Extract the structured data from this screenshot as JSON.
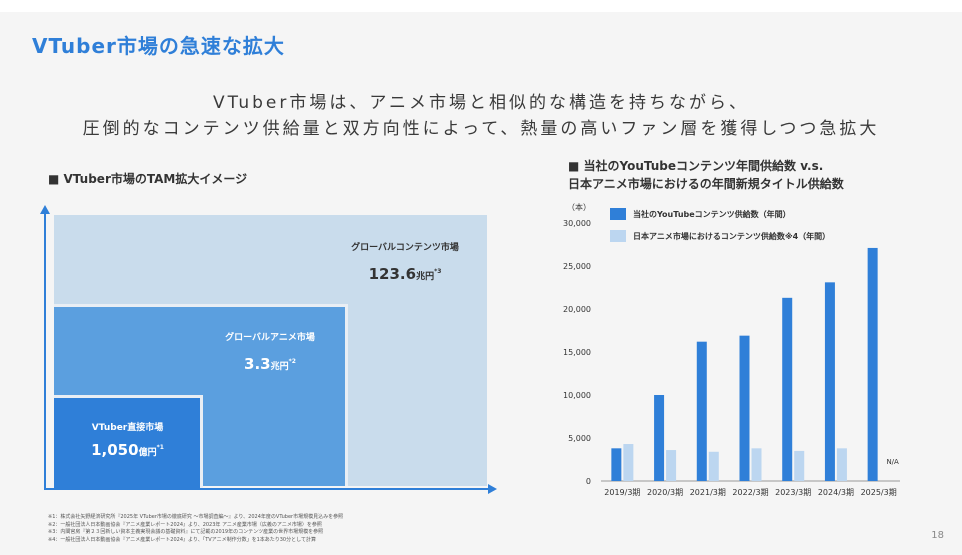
{
  "title": "VTuber市場の急速な拡大",
  "subtitle": {
    "line1": "VTuber市場は、アニメ市場と相似的な構造を持ちながら、",
    "line2": "圧倒的なコンテンツ供給量と双方向性によって、熱量の高いファン層を獲得しつつ急拡大"
  },
  "left_section": {
    "heading": "■ VTuber市場のTAM拡大イメージ",
    "boxes": [
      {
        "name": "グローバルコンテンツ市場",
        "value": "123.6",
        "unit": "兆円",
        "note": "*3"
      },
      {
        "name": "グローバルアニメ市場",
        "value": "3.3",
        "unit": "兆円",
        "note": "*2"
      },
      {
        "name": "VTuber直接市場",
        "value": "1,050",
        "unit": "億円",
        "note": "*1"
      }
    ]
  },
  "right_section": {
    "heading_line1": "■ 当社のYouTubeコンテンツ年間供給数 v.s.",
    "heading_line2": "日本アニメ市場におけるの年間新規タイトル供給数"
  },
  "footnotes": [
    "※1：株式会社矢野経済研究所『2025年 VTuber市場の徹底研究 ～市場調査編～』より、2024年度のVTuber市場規模見込みを参照",
    "※2：一般社団法人日本動画協会『アニメ産業レポート2024』より、2023年 アニメ産業市場（広義のアニメ市場）を参照",
    "※3：内閣官房『第２３回新しい資本主義実現会議の基礎資料』にて記載の2019年のコンテンツ産業の世界市場規模を参照",
    "※4：一般社団法人日本動画協会『アニメ産業レポート2024』より、「TVアニメ制作分数」を1本あたり30分として計算"
  ],
  "page_number": "18",
  "colors": {
    "accent": "#2f7fd8",
    "light": "#bcd6f0",
    "mid": "#5b9fdf",
    "pale": "#c9dcec"
  },
  "chart_data": {
    "type": "bar",
    "ylabel": "（本）",
    "ylim": [
      0,
      30000
    ],
    "yticks": [
      "0",
      "5,000",
      "10,000",
      "15,000",
      "20,000",
      "25,000",
      "30,000"
    ],
    "categories": [
      "2019/3期",
      "2020/3期",
      "2021/3期",
      "2022/3期",
      "2023/3期",
      "2024/3期",
      "2025/3期"
    ],
    "series": [
      {
        "name": "当社のYouTubeコンテンツ供給数（年間）",
        "color": "#2f7fd8",
        "values": [
          3800,
          10000,
          16200,
          16900,
          21300,
          23100,
          27100
        ]
      },
      {
        "name": "日本アニメ市場におけるコンテンツ供給数※4（年間）",
        "color": "#bcd6f0",
        "values": [
          4300,
          3600,
          3400,
          3800,
          3500,
          3800,
          null
        ]
      }
    ],
    "annotations": [
      "N/A"
    ],
    "legend": "top-left"
  }
}
